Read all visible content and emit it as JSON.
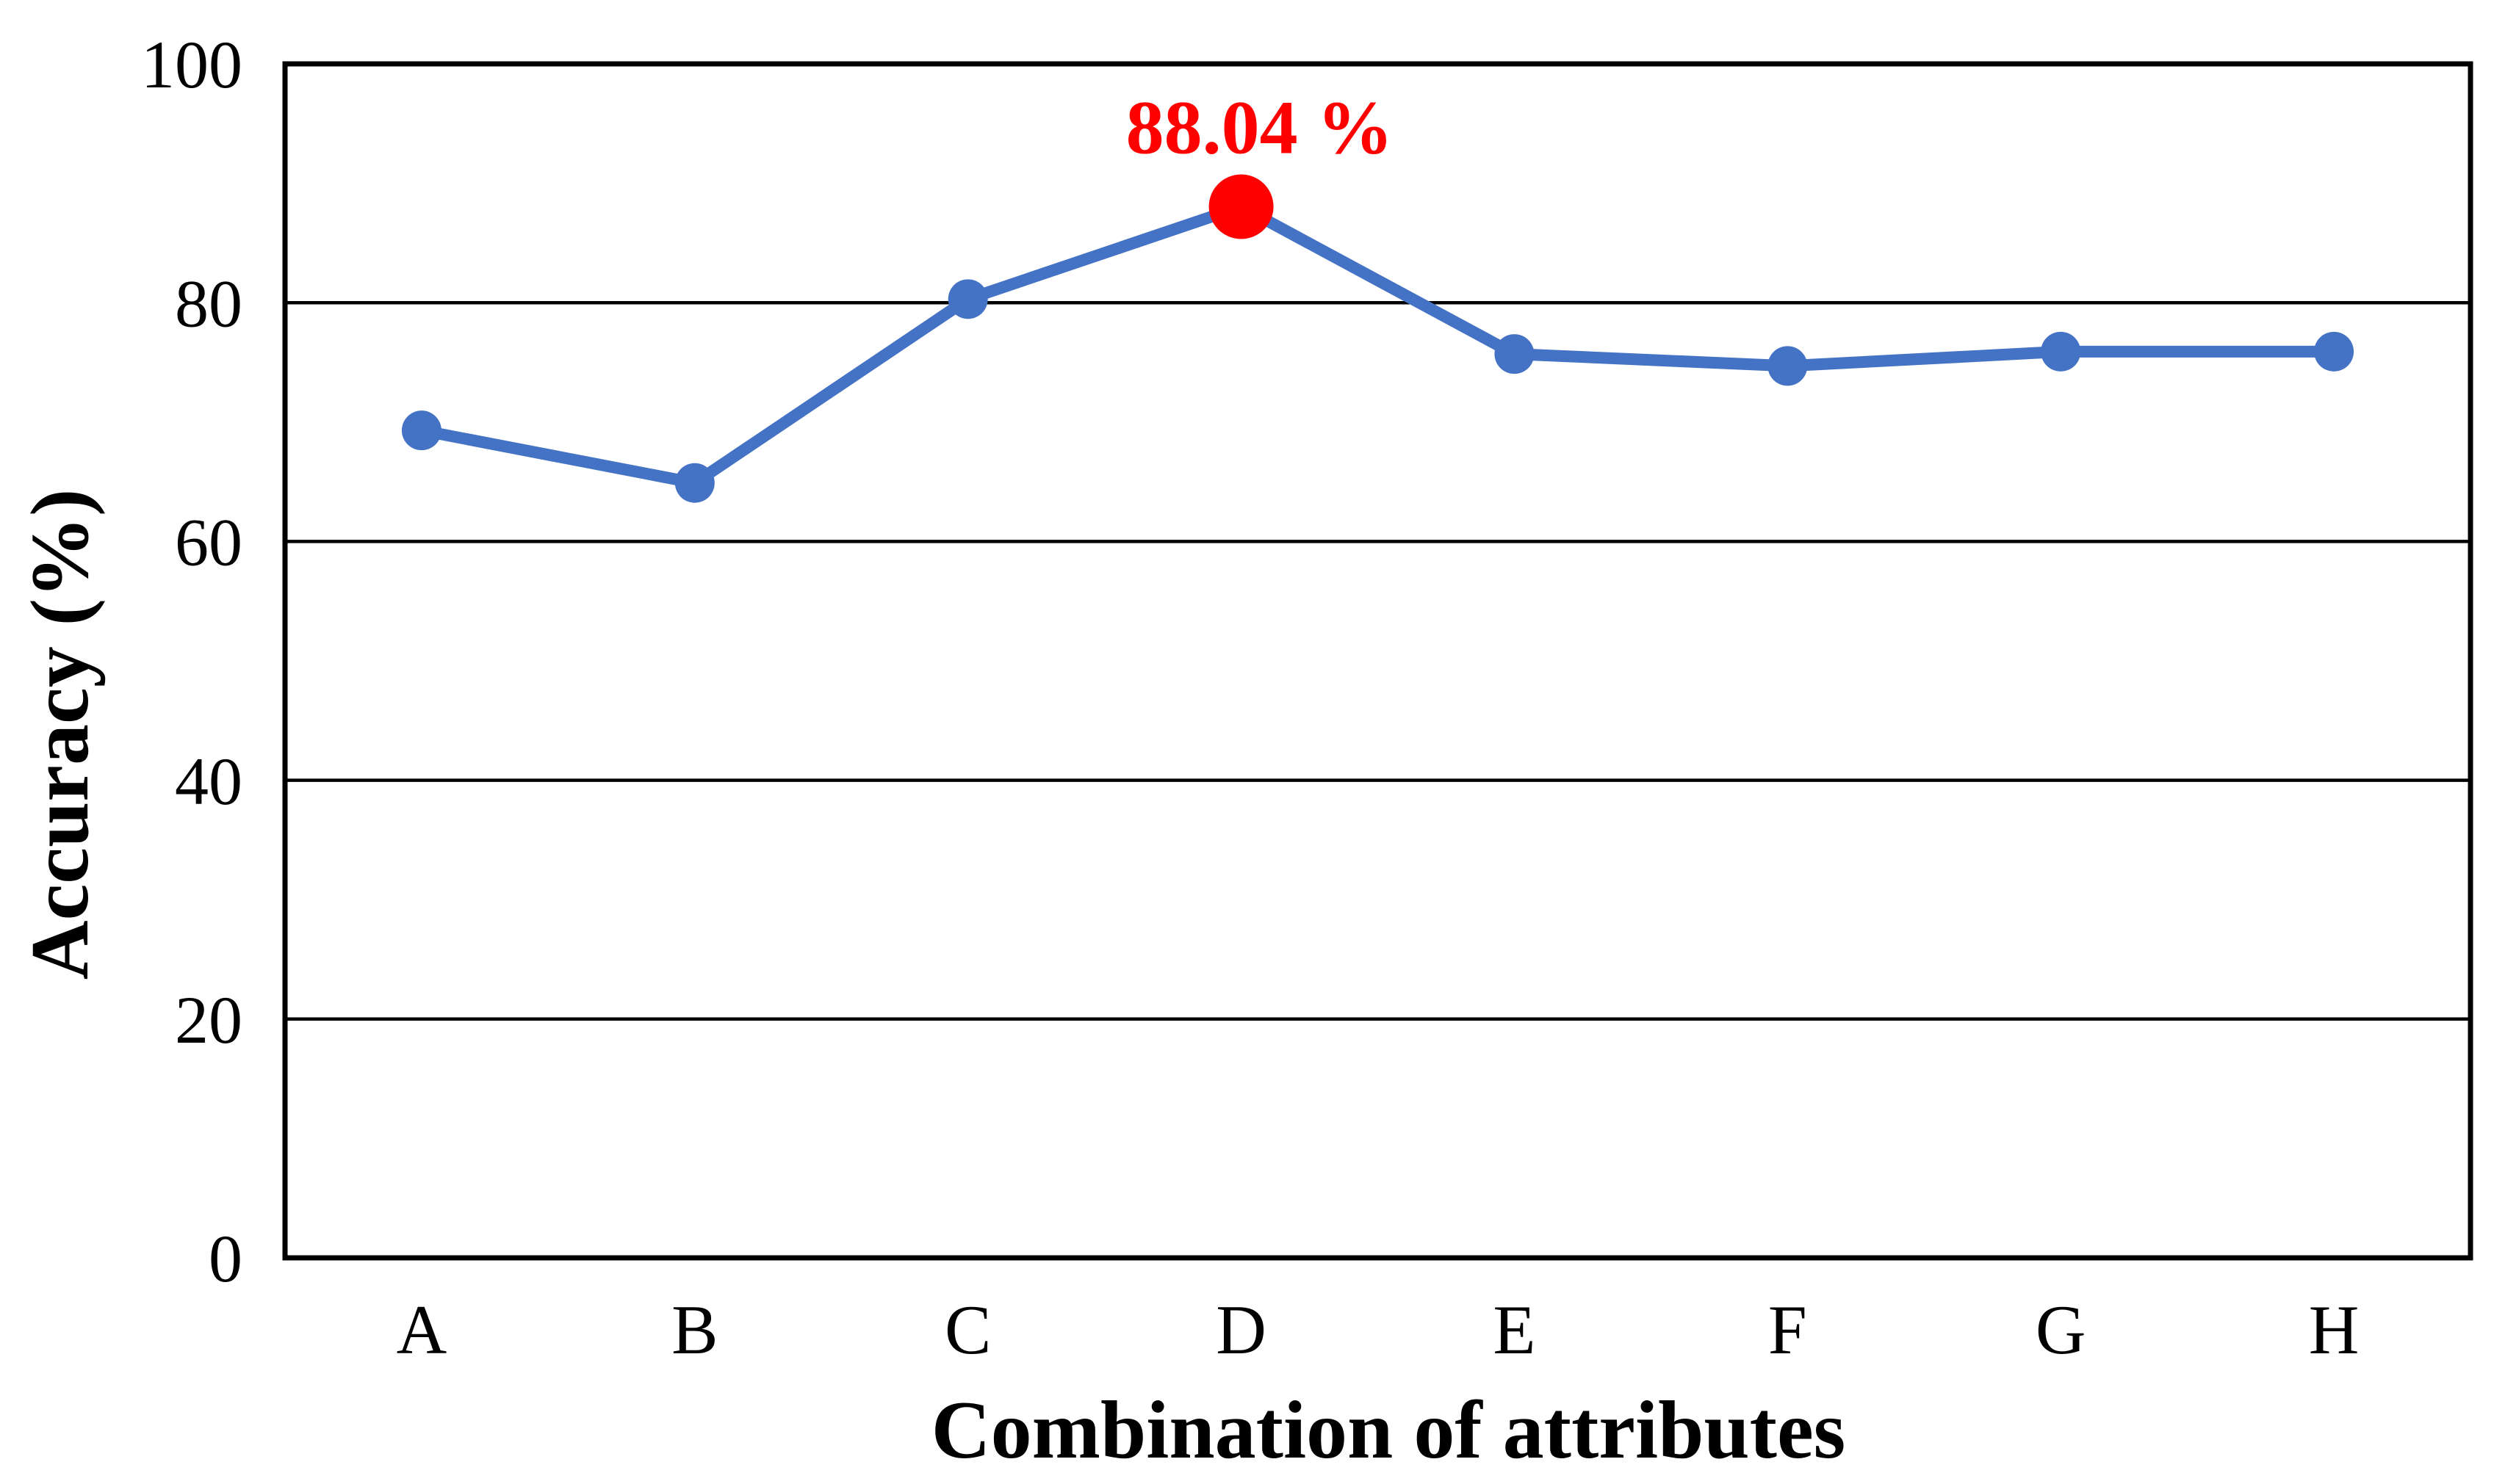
{
  "chart_data": {
    "type": "line",
    "title": "",
    "xlabel": "Combination of attributes",
    "ylabel": "Accuracy (%)",
    "categories": [
      "A",
      "B",
      "C",
      "D",
      "E",
      "F",
      "G",
      "H"
    ],
    "series": [
      {
        "name": "Accuracy",
        "values": [
          69.3,
          64.9,
          80.3,
          88.04,
          75.7,
          74.7,
          75.9,
          75.9
        ],
        "color": "#4472C4"
      }
    ],
    "ylim": [
      0,
      100
    ],
    "yticks": [
      0,
      20,
      40,
      60,
      80,
      100
    ],
    "grid": "horizontal",
    "legend": "none",
    "highlight": {
      "category": "D",
      "index": 3,
      "value": 88.04,
      "label": "88.04 %",
      "color": "#FF0000"
    },
    "colors": {
      "axis": "#000000",
      "gridline": "#000000",
      "background": "#FFFFFF"
    }
  }
}
